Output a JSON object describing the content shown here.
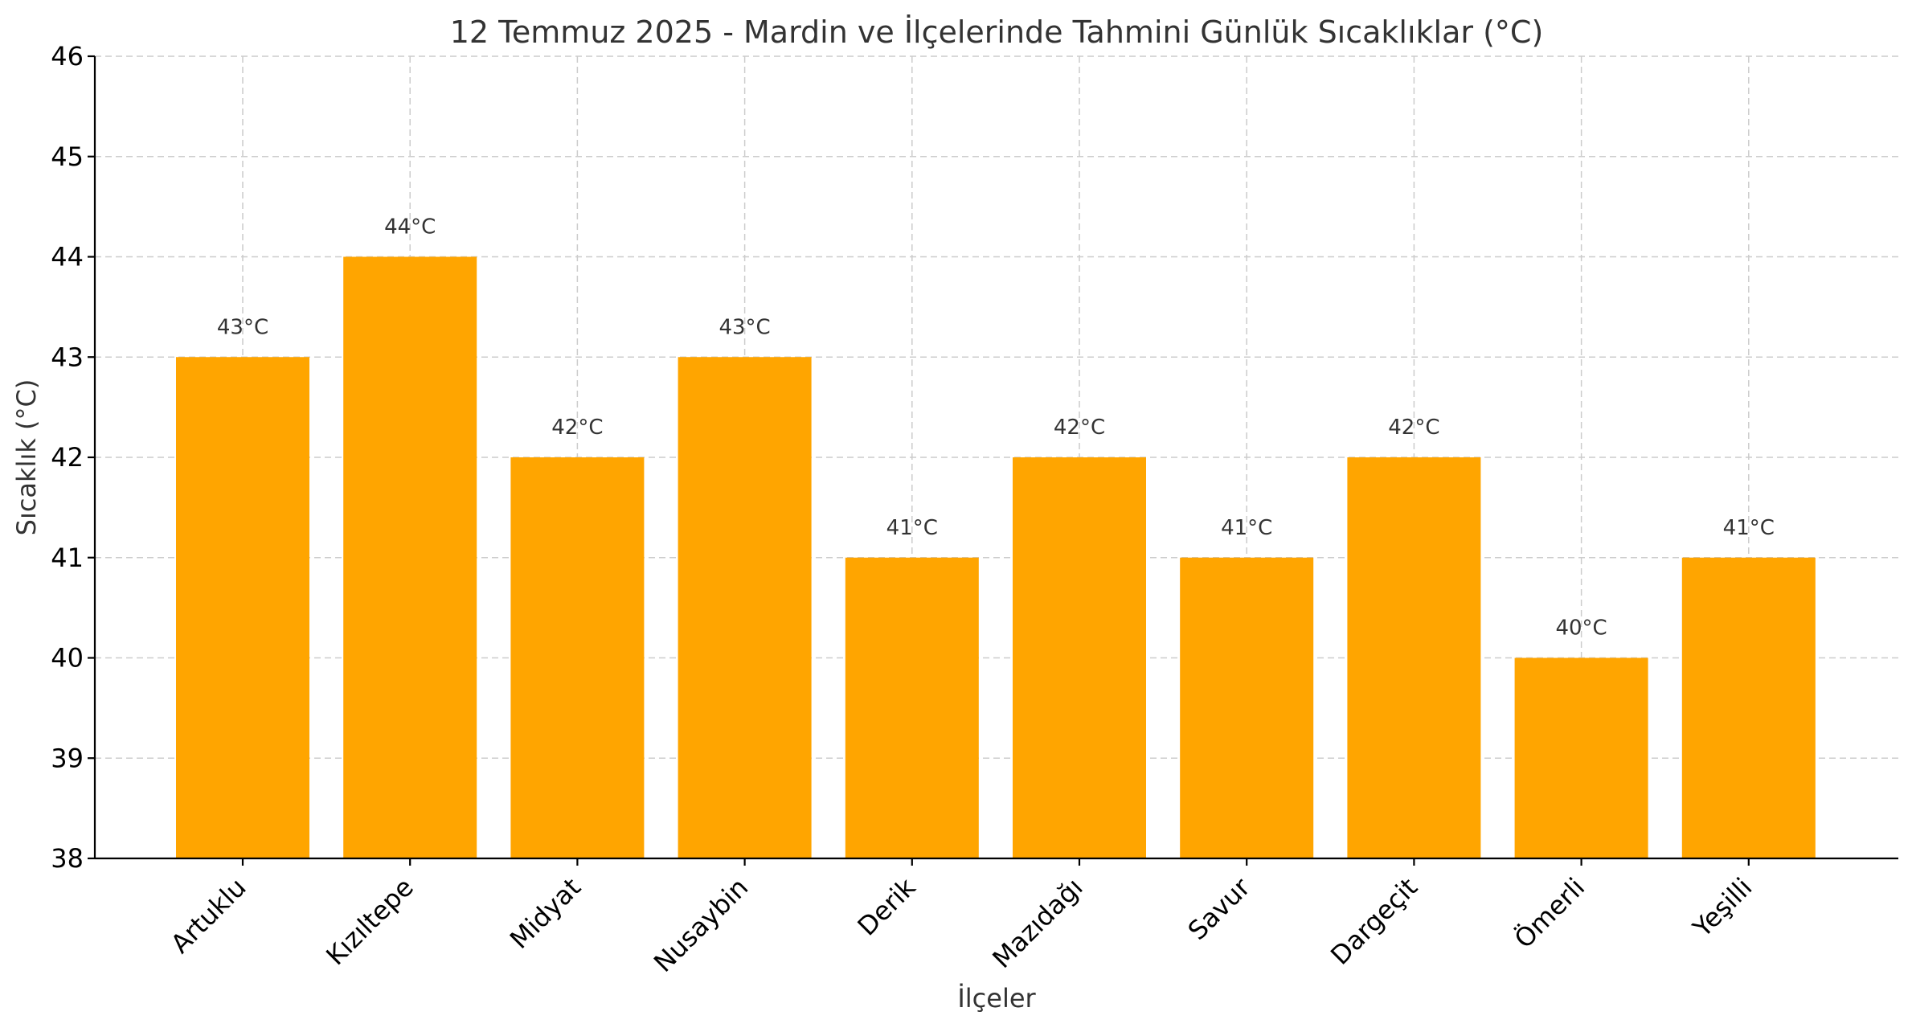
{
  "chart_data": {
    "type": "bar",
    "title": "12 Temmuz 2025 - Mardin ve İlçelerinde Tahmini Günlük Sıcaklıklar (°C)",
    "xlabel": "İlçeler",
    "ylabel": "Sıcaklık (°C)",
    "categories": [
      "Artuklu",
      "Kızıltepe",
      "Midyat",
      "Nusaybin",
      "Derik",
      "Mazıdağı",
      "Savur",
      "Dargeçit",
      "Ömerli",
      "Yeşilli"
    ],
    "values": [
      43,
      44,
      42,
      43,
      41,
      42,
      41,
      42,
      40,
      41
    ],
    "data_labels": [
      "43°C",
      "44°C",
      "42°C",
      "43°C",
      "41°C",
      "42°C",
      "41°C",
      "42°C",
      "40°C",
      "41°C"
    ],
    "ylim": [
      38,
      46
    ],
    "yticks": [
      38,
      39,
      40,
      41,
      42,
      43,
      44,
      45,
      46
    ],
    "grid": true,
    "bar_color": "#ffa500"
  }
}
